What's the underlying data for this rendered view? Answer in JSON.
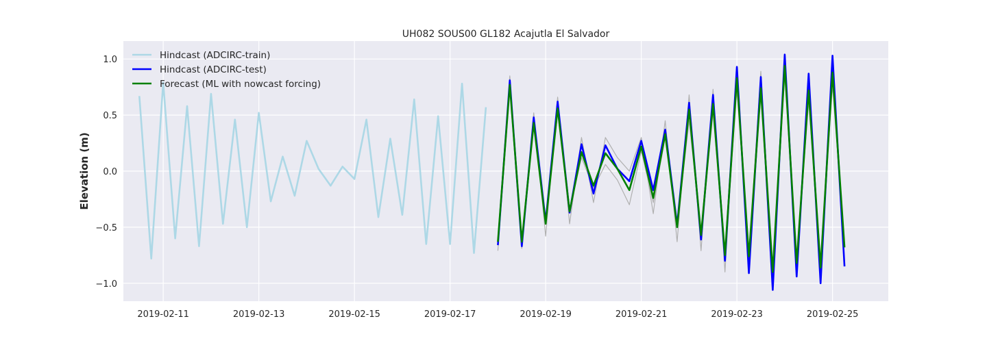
{
  "chart_data": {
    "type": "line",
    "title": "UH082 SOUS00 GL182 Acajutla El Salvador",
    "xlabel": "",
    "ylabel": "Elevation (m)",
    "xlim": [
      "2019-02-10T04:00",
      "2019-02-26T04:00"
    ],
    "ylim": [
      -1.16,
      1.16
    ],
    "x_ticks": [
      "2019-02-11",
      "2019-02-13",
      "2019-02-15",
      "2019-02-17",
      "2019-02-19",
      "2019-02-21",
      "2019-02-23",
      "2019-02-25"
    ],
    "y_ticks": [
      1.0,
      0.5,
      0.0,
      -0.5,
      -1.0
    ],
    "y_tick_labels": [
      "1.0",
      "0.5",
      "0.0",
      "−0.5",
      "−1.0"
    ],
    "grid": true,
    "legend_position": "top-left",
    "series": [
      {
        "name": "Hindcast (ADCIRC-train)",
        "color": "#add8e6",
        "x": [
          "2019-02-10T12:00",
          "2019-02-10T18:00",
          "2019-02-11T00:00",
          "2019-02-11T06:00",
          "2019-02-11T12:00",
          "2019-02-11T18:00",
          "2019-02-12T00:00",
          "2019-02-12T06:00",
          "2019-02-12T12:00",
          "2019-02-12T18:00",
          "2019-02-13T00:00",
          "2019-02-13T06:00",
          "2019-02-13T12:00",
          "2019-02-13T18:00",
          "2019-02-14T00:00",
          "2019-02-14T06:00",
          "2019-02-14T12:00",
          "2019-02-14T18:00",
          "2019-02-15T00:00",
          "2019-02-15T06:00",
          "2019-02-15T12:00",
          "2019-02-15T18:00",
          "2019-02-16T00:00",
          "2019-02-16T06:00",
          "2019-02-16T12:00",
          "2019-02-16T18:00",
          "2019-02-17T00:00",
          "2019-02-17T06:00",
          "2019-02-17T12:00",
          "2019-02-17T18:00"
        ],
        "y": [
          0.67,
          -0.78,
          0.79,
          -0.6,
          0.58,
          -0.67,
          0.69,
          -0.47,
          0.46,
          -0.5,
          0.52,
          -0.27,
          0.13,
          -0.22,
          0.27,
          0.02,
          -0.13,
          0.04,
          -0.07,
          0.46,
          -0.41,
          0.29,
          -0.39,
          0.64,
          -0.65,
          0.49,
          -0.65,
          0.78,
          -0.73,
          0.57
        ]
      },
      {
        "name": "",
        "color": "#b0b0b0",
        "x": [
          "2019-02-18T00:00",
          "2019-02-18T06:00",
          "2019-02-18T12:00",
          "2019-02-18T18:00",
          "2019-02-19T00:00",
          "2019-02-19T06:00",
          "2019-02-19T12:00",
          "2019-02-19T18:00",
          "2019-02-20T00:00",
          "2019-02-20T06:00",
          "2019-02-20T12:00",
          "2019-02-20T18:00",
          "2019-02-21T00:00",
          "2019-02-21T06:00",
          "2019-02-21T12:00",
          "2019-02-21T18:00",
          "2019-02-22T00:00",
          "2019-02-22T06:00",
          "2019-02-22T12:00",
          "2019-02-22T18:00",
          "2019-02-23T00:00",
          "2019-02-23T06:00",
          "2019-02-23T12:00",
          "2019-02-23T18:00",
          "2019-02-24T00:00",
          "2019-02-24T06:00",
          "2019-02-24T12:00",
          "2019-02-24T18:00",
          "2019-02-25T00:00",
          "2019-02-25T06:00"
        ],
        "y": [
          -0.71,
          0.85,
          -0.69,
          0.52,
          -0.58,
          0.66,
          -0.47,
          0.3,
          -0.28,
          0.3,
          0.12,
          0.0,
          0.3,
          -0.38,
          0.45,
          -0.63,
          0.68,
          -0.71,
          0.73,
          -0.9,
          0.85,
          -0.77,
          0.89,
          -0.95,
          1.0,
          -0.85,
          0.81,
          -0.88,
          0.9,
          -0.68
        ]
      },
      {
        "name": "",
        "color": "#b0b0b0",
        "x": [
          "2019-02-18T00:00",
          "2019-02-18T06:00",
          "2019-02-18T12:00",
          "2019-02-18T18:00",
          "2019-02-19T00:00",
          "2019-02-19T06:00",
          "2019-02-19T12:00",
          "2019-02-19T18:00",
          "2019-02-20T00:00",
          "2019-02-20T06:00",
          "2019-02-20T12:00",
          "2019-02-20T18:00",
          "2019-02-21T00:00",
          "2019-02-21T06:00",
          "2019-02-21T12:00",
          "2019-02-21T18:00",
          "2019-02-22T00:00",
          "2019-02-22T06:00",
          "2019-02-22T12:00",
          "2019-02-22T18:00",
          "2019-02-23T00:00",
          "2019-02-23T06:00",
          "2019-02-23T12:00",
          "2019-02-23T18:00",
          "2019-02-24T00:00",
          "2019-02-24T06:00",
          "2019-02-24T12:00",
          "2019-02-24T18:00",
          "2019-02-25T00:00",
          "2019-02-25T06:00"
        ],
        "y": [
          -0.62,
          0.75,
          -0.62,
          0.4,
          -0.45,
          0.52,
          -0.35,
          0.12,
          -0.15,
          0.06,
          -0.08,
          -0.3,
          0.18,
          -0.28,
          0.3,
          -0.48,
          0.45,
          -0.54,
          0.52,
          -0.73,
          0.72,
          -0.72,
          0.68,
          -0.85,
          0.85,
          -0.78,
          0.62,
          -0.78,
          0.76,
          -0.64
        ]
      },
      {
        "name": "Hindcast (ADCIRC-test)",
        "color": "#0000ff",
        "x": [
          "2019-02-18T00:00",
          "2019-02-18T06:00",
          "2019-02-18T12:00",
          "2019-02-18T18:00",
          "2019-02-19T00:00",
          "2019-02-19T06:00",
          "2019-02-19T12:00",
          "2019-02-19T18:00",
          "2019-02-20T00:00",
          "2019-02-20T06:00",
          "2019-02-20T12:00",
          "2019-02-20T18:00",
          "2019-02-21T00:00",
          "2019-02-21T06:00",
          "2019-02-21T12:00",
          "2019-02-21T18:00",
          "2019-02-22T00:00",
          "2019-02-22T06:00",
          "2019-02-22T12:00",
          "2019-02-22T18:00",
          "2019-02-23T00:00",
          "2019-02-23T06:00",
          "2019-02-23T12:00",
          "2019-02-23T18:00",
          "2019-02-24T00:00",
          "2019-02-24T06:00",
          "2019-02-24T12:00",
          "2019-02-24T18:00",
          "2019-02-25T00:00",
          "2019-02-25T06:00"
        ],
        "y": [
          -0.66,
          0.81,
          -0.67,
          0.48,
          -0.45,
          0.62,
          -0.37,
          0.24,
          -0.2,
          0.23,
          0.02,
          -0.09,
          0.27,
          -0.17,
          0.37,
          -0.48,
          0.61,
          -0.61,
          0.68,
          -0.8,
          0.93,
          -0.91,
          0.84,
          -1.06,
          1.04,
          -0.94,
          0.87,
          -1.0,
          1.03,
          -0.85
        ]
      },
      {
        "name": "Forecast (ML with nowcast forcing)",
        "color": "#008000",
        "x": [
          "2019-02-18T00:00",
          "2019-02-18T06:00",
          "2019-02-18T12:00",
          "2019-02-18T18:00",
          "2019-02-19T00:00",
          "2019-02-19T06:00",
          "2019-02-19T12:00",
          "2019-02-19T18:00",
          "2019-02-20T00:00",
          "2019-02-20T06:00",
          "2019-02-20T12:00",
          "2019-02-20T18:00",
          "2019-02-21T00:00",
          "2019-02-21T06:00",
          "2019-02-21T12:00",
          "2019-02-21T18:00",
          "2019-02-22T00:00",
          "2019-02-22T06:00",
          "2019-02-22T12:00",
          "2019-02-22T18:00",
          "2019-02-23T00:00",
          "2019-02-23T06:00",
          "2019-02-23T12:00",
          "2019-02-23T18:00",
          "2019-02-24T00:00",
          "2019-02-24T06:00",
          "2019-02-24T12:00",
          "2019-02-24T18:00",
          "2019-02-25T00:00",
          "2019-02-25T06:00"
        ],
        "y": [
          -0.63,
          0.77,
          -0.63,
          0.43,
          -0.47,
          0.56,
          -0.36,
          0.17,
          -0.13,
          0.16,
          0.02,
          -0.17,
          0.22,
          -0.24,
          0.33,
          -0.5,
          0.55,
          -0.57,
          0.6,
          -0.75,
          0.83,
          -0.76,
          0.74,
          -0.9,
          0.94,
          -0.82,
          0.72,
          -0.86,
          0.88,
          -0.68
        ]
      }
    ]
  }
}
